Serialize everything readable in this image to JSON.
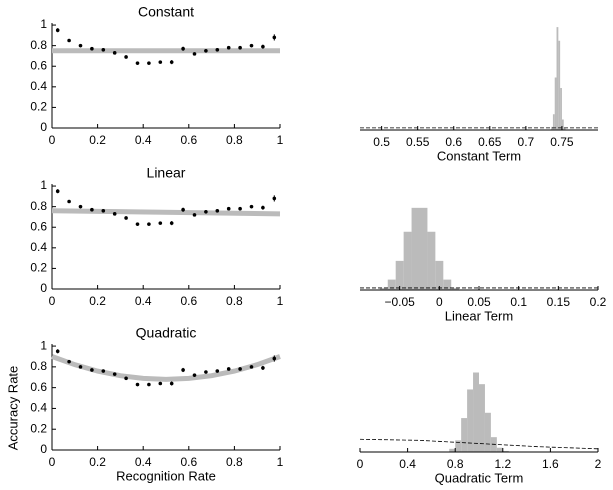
{
  "chart_data": [
    {
      "type": "scatter",
      "title": "Constant",
      "xlim": [
        0,
        1
      ],
      "xticks": [
        0,
        0.2,
        0.4,
        0.6,
        0.8,
        1
      ],
      "ylim": [
        0,
        1.02
      ],
      "yticks": [
        0,
        0.2,
        0.4,
        0.6,
        0.8,
        1
      ],
      "x": [
        0.025,
        0.075,
        0.125,
        0.175,
        0.225,
        0.275,
        0.325,
        0.375,
        0.425,
        0.475,
        0.525,
        0.575,
        0.625,
        0.675,
        0.725,
        0.775,
        0.825,
        0.875,
        0.925,
        0.975
      ],
      "values": [
        0.95,
        0.85,
        0.8,
        0.77,
        0.76,
        0.73,
        0.69,
        0.63,
        0.63,
        0.64,
        0.64,
        0.77,
        0.72,
        0.75,
        0.76,
        0.78,
        0.78,
        0.8,
        0.79,
        0.88
      ],
      "errors": [
        0.02,
        0.015,
        0.015,
        0.015,
        0.015,
        0.015,
        0.015,
        0.015,
        0.015,
        0.015,
        0.02,
        0.02,
        0.015,
        0.015,
        0.015,
        0.015,
        0.015,
        0.015,
        0.02,
        0.03
      ],
      "color": "#000000",
      "fit_color": "#bbbbbb",
      "fit_x": [
        0,
        1
      ],
      "fit_values": [
        0.75,
        0.75
      ]
    },
    {
      "type": "histogram",
      "xlabel": "Constant Term",
      "xlim": [
        0.47,
        0.8
      ],
      "xticks": [
        0.5,
        0.55,
        0.6,
        0.65,
        0.7,
        0.75
      ],
      "ylim": [
        0,
        1
      ],
      "bins": [
        0.735,
        0.7375,
        0.74,
        0.7425,
        0.745,
        0.7475,
        0.75,
        0.7525,
        0.755
      ],
      "counts": [
        0.03,
        0.15,
        0.5,
        0.98,
        0.85,
        0.4,
        0.1,
        0.02
      ],
      "color": "#bbbbbb",
      "prior_x": [
        0.47,
        0.8
      ],
      "prior_values": [
        0.02,
        0.02
      ]
    },
    {
      "type": "scatter",
      "title": "Linear",
      "xlim": [
        0,
        1
      ],
      "xticks": [
        0,
        0.2,
        0.4,
        0.6,
        0.8,
        1
      ],
      "ylim": [
        0,
        1.02
      ],
      "yticks": [
        0,
        0.2,
        0.4,
        0.6,
        0.8,
        1
      ],
      "x": [
        0.025,
        0.075,
        0.125,
        0.175,
        0.225,
        0.275,
        0.325,
        0.375,
        0.425,
        0.475,
        0.525,
        0.575,
        0.625,
        0.675,
        0.725,
        0.775,
        0.825,
        0.875,
        0.925,
        0.975
      ],
      "values": [
        0.95,
        0.85,
        0.8,
        0.77,
        0.76,
        0.73,
        0.69,
        0.63,
        0.63,
        0.64,
        0.64,
        0.77,
        0.72,
        0.75,
        0.76,
        0.78,
        0.78,
        0.8,
        0.79,
        0.88
      ],
      "errors": [
        0.02,
        0.015,
        0.015,
        0.015,
        0.015,
        0.015,
        0.015,
        0.015,
        0.015,
        0.015,
        0.02,
        0.02,
        0.015,
        0.015,
        0.015,
        0.015,
        0.015,
        0.015,
        0.02,
        0.03
      ],
      "color": "#000000",
      "fit_color": "#bbbbbb",
      "fit_x": [
        0,
        1
      ],
      "fit_values": [
        0.76,
        0.73
      ]
    },
    {
      "type": "histogram",
      "xlabel": "Linear Term",
      "xlim": [
        -0.1,
        0.2
      ],
      "xticks": [
        {
          "value": -0.05,
          "label": "−0.05"
        },
        0,
        0.05,
        0.1,
        0.15,
        0.2
      ],
      "ylim": [
        0,
        1
      ],
      "bins": [
        -0.075,
        -0.065,
        -0.055,
        -0.045,
        -0.035,
        -0.025,
        -0.015,
        -0.005,
        0.005,
        0.015,
        0.025
      ],
      "counts": [
        0.02,
        0.1,
        0.28,
        0.56,
        0.79,
        0.79,
        0.56,
        0.28,
        0.1,
        0.02
      ],
      "color": "#bbbbbb",
      "prior_x": [
        -0.1,
        0.2
      ],
      "prior_values": [
        0.02,
        0.02
      ]
    },
    {
      "type": "scatter",
      "title": "Quadratic",
      "xlabel": "Recognition Rate",
      "ylabel": "Accuracy Rate",
      "xlim": [
        0,
        1
      ],
      "xticks": [
        0,
        0.2,
        0.4,
        0.6,
        0.8,
        1
      ],
      "ylim": [
        0,
        1.02
      ],
      "yticks": [
        0,
        0.2,
        0.4,
        0.6,
        0.8,
        1
      ],
      "x": [
        0.025,
        0.075,
        0.125,
        0.175,
        0.225,
        0.275,
        0.325,
        0.375,
        0.425,
        0.475,
        0.525,
        0.575,
        0.625,
        0.675,
        0.725,
        0.775,
        0.825,
        0.875,
        0.925,
        0.975
      ],
      "values": [
        0.95,
        0.85,
        0.8,
        0.77,
        0.76,
        0.73,
        0.69,
        0.63,
        0.63,
        0.64,
        0.64,
        0.77,
        0.72,
        0.75,
        0.76,
        0.78,
        0.78,
        0.8,
        0.79,
        0.88
      ],
      "errors": [
        0.02,
        0.015,
        0.015,
        0.015,
        0.015,
        0.015,
        0.015,
        0.015,
        0.015,
        0.015,
        0.02,
        0.02,
        0.015,
        0.015,
        0.015,
        0.015,
        0.015,
        0.015,
        0.02,
        0.03
      ],
      "color": "#000000",
      "fit_color": "#bbbbbb",
      "fit_x": [
        0,
        0.1,
        0.2,
        0.3,
        0.4,
        0.5,
        0.6,
        0.7,
        0.8,
        0.9,
        1
      ],
      "fit_values": [
        0.9,
        0.821,
        0.759,
        0.715,
        0.689,
        0.68,
        0.689,
        0.715,
        0.759,
        0.821,
        0.9
      ]
    },
    {
      "type": "histogram",
      "xlabel": "Quadratic Term",
      "xlim": [
        0,
        2
      ],
      "xticks": [
        0,
        0.4,
        0.8,
        1.2,
        1.6,
        2
      ],
      "ylim": [
        0,
        1
      ],
      "bins": [
        0.7,
        0.75,
        0.8,
        0.85,
        0.9,
        0.95,
        1,
        1.05,
        1.1,
        1.15,
        1.2,
        1.25,
        1.3
      ],
      "counts": [
        0,
        0.03,
        0.11,
        0.32,
        0.59,
        0.75,
        0.64,
        0.37,
        0.14,
        0.04,
        0.01,
        0
      ],
      "color": "#bbbbbb",
      "prior_x": [
        0,
        0.5,
        1,
        1.5,
        2
      ],
      "prior_values": [
        0.12,
        0.11,
        0.08,
        0.05,
        0.03
      ]
    }
  ]
}
